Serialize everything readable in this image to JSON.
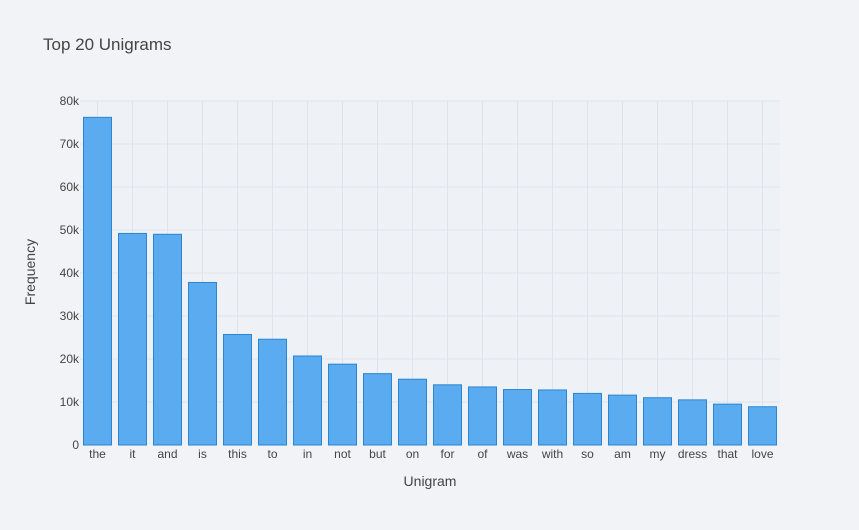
{
  "chart_data": {
    "type": "bar",
    "title": "Top 20 Unigrams",
    "xlabel": "Unigram",
    "ylabel": "Frequency",
    "categories": [
      "the",
      "it",
      "and",
      "is",
      "this",
      "to",
      "in",
      "not",
      "but",
      "on",
      "for",
      "of",
      "was",
      "with",
      "so",
      "am",
      "my",
      "dress",
      "that",
      "love"
    ],
    "values": [
      76200,
      49200,
      49000,
      37800,
      25700,
      24600,
      20700,
      18800,
      16600,
      15300,
      14000,
      13500,
      12900,
      12800,
      12000,
      11600,
      11000,
      10500,
      9500,
      8900
    ],
    "ylim": [
      0,
      80000
    ],
    "yticks": [
      0,
      10000,
      20000,
      30000,
      40000,
      50000,
      60000,
      70000,
      80000
    ],
    "ytick_labels": [
      "0",
      "10k",
      "20k",
      "30k",
      "40k",
      "50k",
      "60k",
      "70k",
      "80k"
    ],
    "grid": true,
    "colors": {
      "background": "#f1f3f7",
      "plot_background": "#eef1f6",
      "grid": "#dfe4ec",
      "bar_fill": "#5aabf0",
      "bar_stroke": "#2b86d1",
      "text": "#444444"
    }
  }
}
